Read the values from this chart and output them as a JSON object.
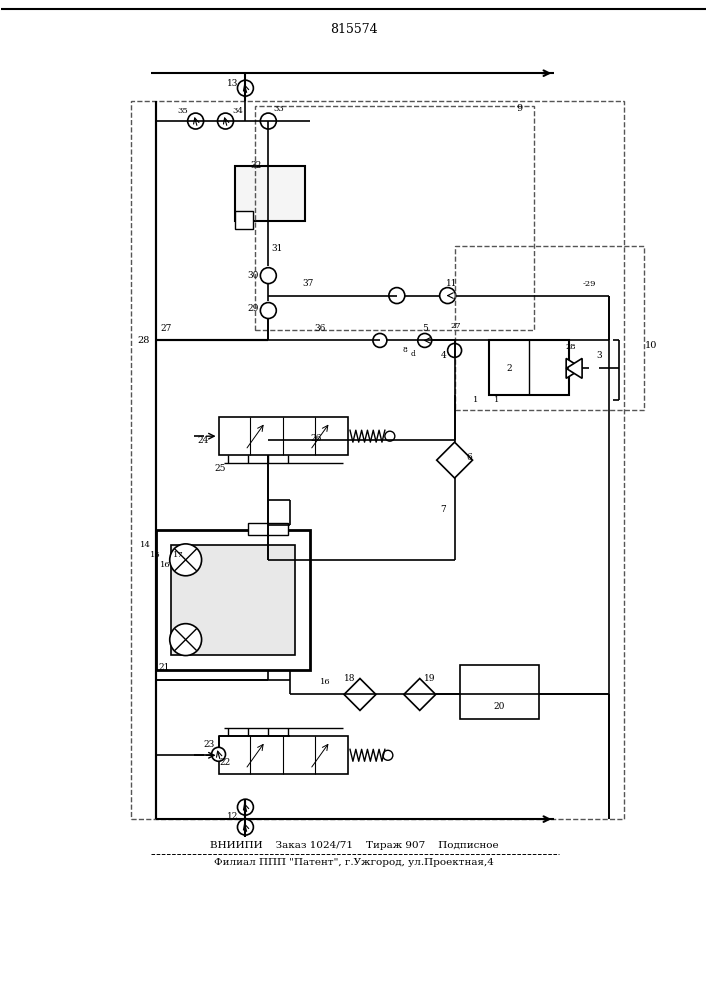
{
  "title": "815574",
  "footer_line1": "ВНИИПИ    Заказ 1024/71    Тираж 907    Подписное",
  "footer_line2": "Филиал ППП \"Патент\", г.Ужгород, ул.Проектная,4",
  "bg_color": "#ffffff",
  "line_color": "#000000",
  "figure_width": 7.07,
  "figure_height": 10.0
}
